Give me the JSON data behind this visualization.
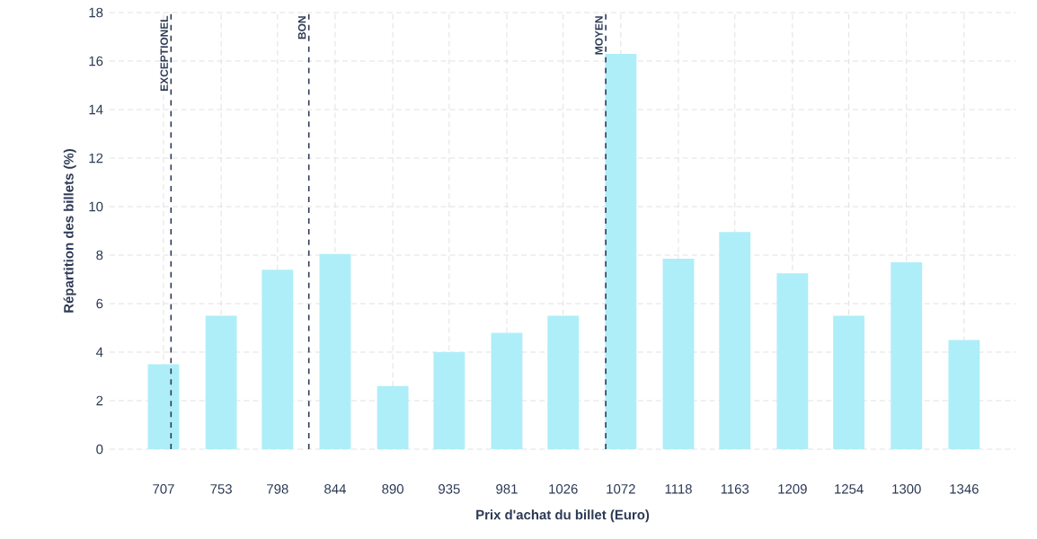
{
  "chart_data": {
    "type": "bar",
    "xlabel": "Prix d'achat du billet (Euro)",
    "ylabel": "Répartition des billets (%)",
    "x": [
      707,
      753,
      798,
      844,
      890,
      935,
      981,
      1026,
      1072,
      1118,
      1163,
      1209,
      1254,
      1300,
      1346
    ],
    "values": [
      3.5,
      5.5,
      7.4,
      8.05,
      2.6,
      4.0,
      4.8,
      5.5,
      16.3,
      7.85,
      8.95,
      7.25,
      5.5,
      7.7,
      4.5
    ],
    "color": "#aeeef8",
    "xlim": [
      664,
      1387
    ],
    "xticks": [
      707,
      753,
      798,
      844,
      890,
      935,
      981,
      1026,
      1072,
      1118,
      1163,
      1209,
      1254,
      1300,
      1346
    ],
    "ylim": [
      0,
      18
    ],
    "yticks": [
      0,
      2,
      4,
      6,
      8,
      10,
      12,
      14,
      16,
      18
    ],
    "grid": true,
    "ref_lines": [
      {
        "axis": "x",
        "value": 713,
        "label": "EXCEPTIONEL",
        "color": "#2d3a55",
        "line_style": "dashed"
      },
      {
        "axis": "x",
        "value": 823,
        "label": "BON",
        "color": "#2d3a55",
        "line_style": "dashed"
      },
      {
        "axis": "x",
        "value": 1060,
        "label": "MOYEN",
        "color": "#2d3a55",
        "line_style": "dashed"
      }
    ]
  }
}
